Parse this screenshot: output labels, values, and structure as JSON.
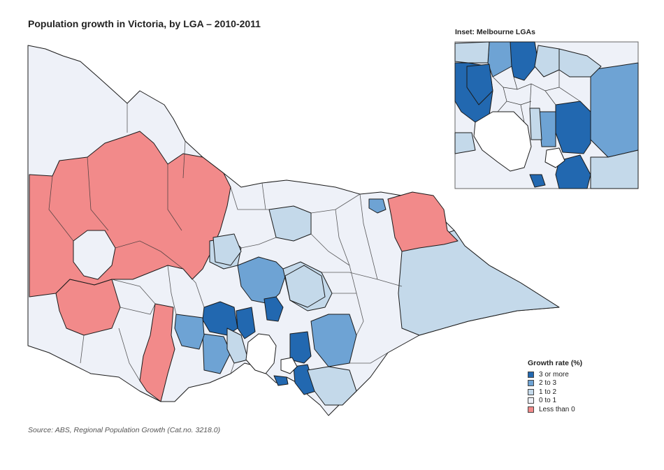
{
  "title": "Population growth in Victoria, by LGA – 2010-2011",
  "inset": {
    "title": "Inset:  Melbourne LGAs"
  },
  "source": "Source:  ABS, Regional Population Growth (Cat.no. 3218.0)",
  "colors": {
    "c3plus": "#2268b0",
    "c2to3": "#6ea3d4",
    "c1to2": "#c4d9ea",
    "c0to1": "#eef1f8",
    "neg": "#f28a8a",
    "water": "#ffffff",
    "border": "#1a1a1a"
  },
  "legend": {
    "title": "Growth rate (%)",
    "items": [
      {
        "key": "c3plus",
        "label": "3 or more"
      },
      {
        "key": "c2to3",
        "label": "2 to 3"
      },
      {
        "key": "c1to2",
        "label": "1 to 2"
      },
      {
        "key": "c0to1",
        "label": "0 to 1"
      },
      {
        "key": "neg",
        "label": "Less than 0"
      }
    ]
  }
}
